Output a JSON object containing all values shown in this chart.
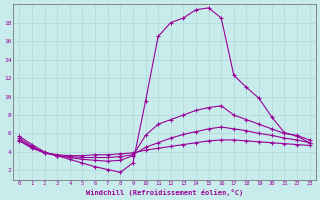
{
  "xlabel": "Windchill (Refroidissement éolien,°C)",
  "ylabel": "",
  "xlim": [
    -0.5,
    23.5
  ],
  "ylim": [
    1,
    20
  ],
  "yticks": [
    2,
    4,
    6,
    8,
    10,
    12,
    14,
    16,
    18
  ],
  "xticks": [
    0,
    1,
    2,
    3,
    4,
    5,
    6,
    7,
    8,
    9,
    10,
    11,
    12,
    13,
    14,
    15,
    16,
    17,
    18,
    19,
    20,
    21,
    22,
    23
  ],
  "background_color": "#c8ecec",
  "line_color": "#990099",
  "grid_color": "#b0d8d8",
  "lines": [
    {
      "x": [
        0,
        1,
        2,
        3,
        4,
        5,
        6,
        7,
        8,
        9,
        10,
        11,
        12,
        13,
        14,
        15,
        16,
        17,
        18,
        19,
        20,
        21,
        22,
        23
      ],
      "y": [
        5.7,
        4.8,
        4.0,
        3.6,
        3.2,
        2.8,
        2.4,
        2.1,
        1.8,
        2.8,
        9.5,
        16.5,
        18.0,
        18.5,
        19.4,
        19.6,
        18.5,
        12.3,
        11.0,
        9.8,
        7.8,
        6.1,
        5.7,
        5.0
      ]
    },
    {
      "x": [
        0,
        1,
        2,
        3,
        4,
        5,
        6,
        7,
        8,
        9,
        10,
        11,
        12,
        13,
        14,
        15,
        16,
        17,
        18,
        19,
        20,
        21,
        22,
        23
      ],
      "y": [
        5.5,
        4.6,
        3.9,
        3.6,
        3.4,
        3.2,
        3.1,
        3.0,
        3.1,
        3.6,
        5.8,
        7.0,
        7.5,
        8.0,
        8.5,
        8.8,
        9.0,
        8.0,
        7.5,
        7.0,
        6.5,
        6.0,
        5.8,
        5.3
      ]
    },
    {
      "x": [
        0,
        1,
        2,
        3,
        4,
        5,
        6,
        7,
        8,
        9,
        10,
        11,
        12,
        13,
        14,
        15,
        16,
        17,
        18,
        19,
        20,
        21,
        22,
        23
      ],
      "y": [
        5.3,
        4.5,
        3.9,
        3.6,
        3.5,
        3.4,
        3.4,
        3.4,
        3.5,
        3.7,
        4.5,
        5.0,
        5.5,
        5.9,
        6.2,
        6.5,
        6.7,
        6.5,
        6.3,
        6.0,
        5.8,
        5.5,
        5.3,
        5.0
      ]
    },
    {
      "x": [
        0,
        1,
        2,
        3,
        4,
        5,
        6,
        7,
        8,
        9,
        10,
        11,
        12,
        13,
        14,
        15,
        16,
        17,
        18,
        19,
        20,
        21,
        22,
        23
      ],
      "y": [
        5.2,
        4.4,
        3.9,
        3.7,
        3.6,
        3.6,
        3.7,
        3.7,
        3.8,
        3.9,
        4.2,
        4.4,
        4.6,
        4.8,
        5.0,
        5.2,
        5.3,
        5.3,
        5.2,
        5.1,
        5.0,
        4.9,
        4.8,
        4.7
      ]
    }
  ]
}
